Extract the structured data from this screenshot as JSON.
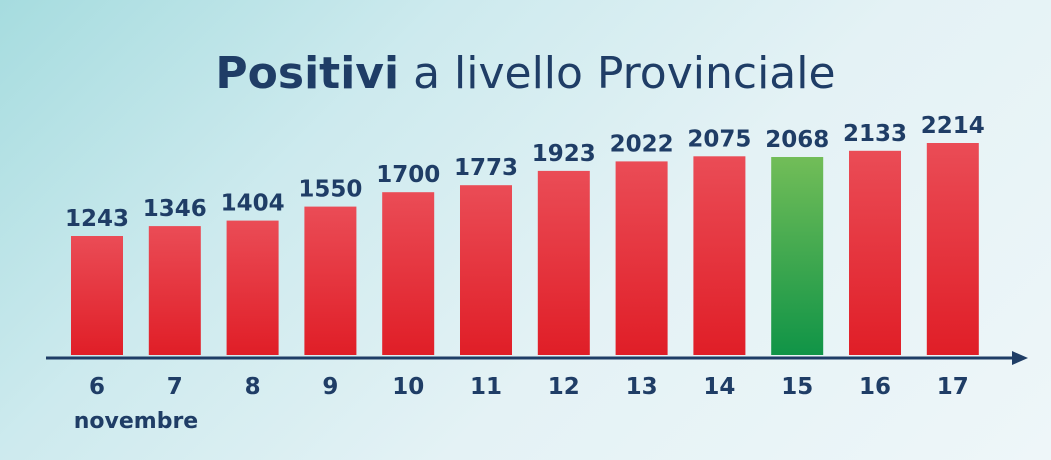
{
  "title": {
    "bold": "Positivi",
    "rest": "a livello Provinciale"
  },
  "colors": {
    "bar_red_top": "#ea4c56",
    "bar_red_bottom": "#e01e27",
    "bar_green_top": "#72bd58",
    "bar_green_bottom": "#109447",
    "text": "#1f3d66",
    "axis": "#1f3d66"
  },
  "chart_data": {
    "type": "bar",
    "categories": [
      "6",
      "7",
      "8",
      "9",
      "10",
      "11",
      "12",
      "13",
      "14",
      "15",
      "16",
      "17"
    ],
    "values": [
      1243,
      1346,
      1404,
      1550,
      1700,
      1773,
      1923,
      2022,
      2075,
      2068,
      2133,
      2214
    ],
    "highlight_index": 9,
    "x_sublabel": "novembre",
    "title": "Positivi a livello Provinciale",
    "xlabel": "",
    "ylabel": "",
    "ylim": [
      0,
      2214
    ],
    "grid": false,
    "legend": "none"
  }
}
